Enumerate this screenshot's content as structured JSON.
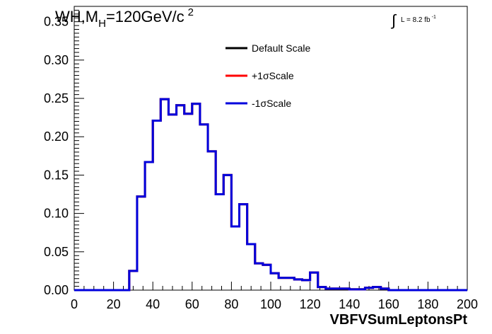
{
  "chart_data": {
    "type": "line",
    "title_parts": {
      "main": "WH,M",
      "sub": "H",
      "rest": "=120GeV/c",
      "sup": "2"
    },
    "lumi_parts": {
      "integral": "∫",
      "text": "L = 8.2 fb",
      "sup": "-1"
    },
    "xlabel": "VBFVSumLeptonsPt",
    "ylabel": "",
    "xlim": [
      0,
      200
    ],
    "ylim": [
      0,
      0.37
    ],
    "x_ticks": [
      "0",
      "20",
      "40",
      "60",
      "80",
      "100",
      "120",
      "140",
      "160",
      "180",
      "200"
    ],
    "y_ticks": [
      "0.00",
      "0.05",
      "0.10",
      "0.15",
      "0.20",
      "0.25",
      "0.30",
      "0.35"
    ],
    "grid": false,
    "legend_position": "top-center",
    "bin_edges": [
      0,
      4,
      8,
      12,
      16,
      20,
      24,
      28,
      32,
      36,
      40,
      44,
      48,
      52,
      56,
      60,
      64,
      68,
      72,
      76,
      80,
      84,
      88,
      92,
      96,
      100,
      104,
      108,
      112,
      116,
      120,
      124,
      128,
      132,
      136,
      140,
      144,
      148,
      152,
      156,
      160,
      164,
      168,
      172,
      176,
      180,
      184,
      188,
      192,
      196,
      200
    ],
    "series": [
      {
        "name": "Default Scale",
        "color": "#000000",
        "values": [
          0,
          0,
          0,
          0,
          0,
          0,
          0,
          0.025,
          0.122,
          0.167,
          0.221,
          0.249,
          0.229,
          0.241,
          0.23,
          0.243,
          0.216,
          0.181,
          0.125,
          0.15,
          0.083,
          0.112,
          0.06,
          0.035,
          0.033,
          0.022,
          0.016,
          0.016,
          0.014,
          0.013,
          0.023,
          0.004,
          0.002,
          0.002,
          0.002,
          0.001,
          0.001,
          0.003,
          0.004,
          0.002,
          0,
          0,
          0,
          0,
          0,
          0,
          0,
          0,
          0,
          0
        ]
      },
      {
        "name": "+1σScale",
        "color": "#ff0000",
        "values": [
          0,
          0,
          0,
          0,
          0,
          0,
          0,
          0.025,
          0.122,
          0.167,
          0.221,
          0.249,
          0.229,
          0.241,
          0.23,
          0.243,
          0.216,
          0.181,
          0.125,
          0.15,
          0.083,
          0.112,
          0.06,
          0.035,
          0.033,
          0.022,
          0.016,
          0.016,
          0.014,
          0.013,
          0.023,
          0.004,
          0.002,
          0.002,
          0.002,
          0.001,
          0.001,
          0.003,
          0.004,
          0.002,
          0,
          0,
          0,
          0,
          0,
          0,
          0,
          0,
          0,
          0
        ]
      },
      {
        "name": "-1σScale",
        "color": "#0000dd",
        "values": [
          0,
          0,
          0,
          0,
          0,
          0,
          0,
          0.025,
          0.122,
          0.167,
          0.221,
          0.249,
          0.229,
          0.241,
          0.23,
          0.243,
          0.216,
          0.181,
          0.125,
          0.15,
          0.083,
          0.112,
          0.06,
          0.035,
          0.033,
          0.022,
          0.016,
          0.016,
          0.014,
          0.013,
          0.023,
          0.004,
          0.002,
          0.002,
          0.002,
          0.001,
          0.001,
          0.003,
          0.004,
          0.002,
          0,
          0,
          0,
          0,
          0,
          0,
          0,
          0,
          0,
          0
        ]
      }
    ]
  }
}
